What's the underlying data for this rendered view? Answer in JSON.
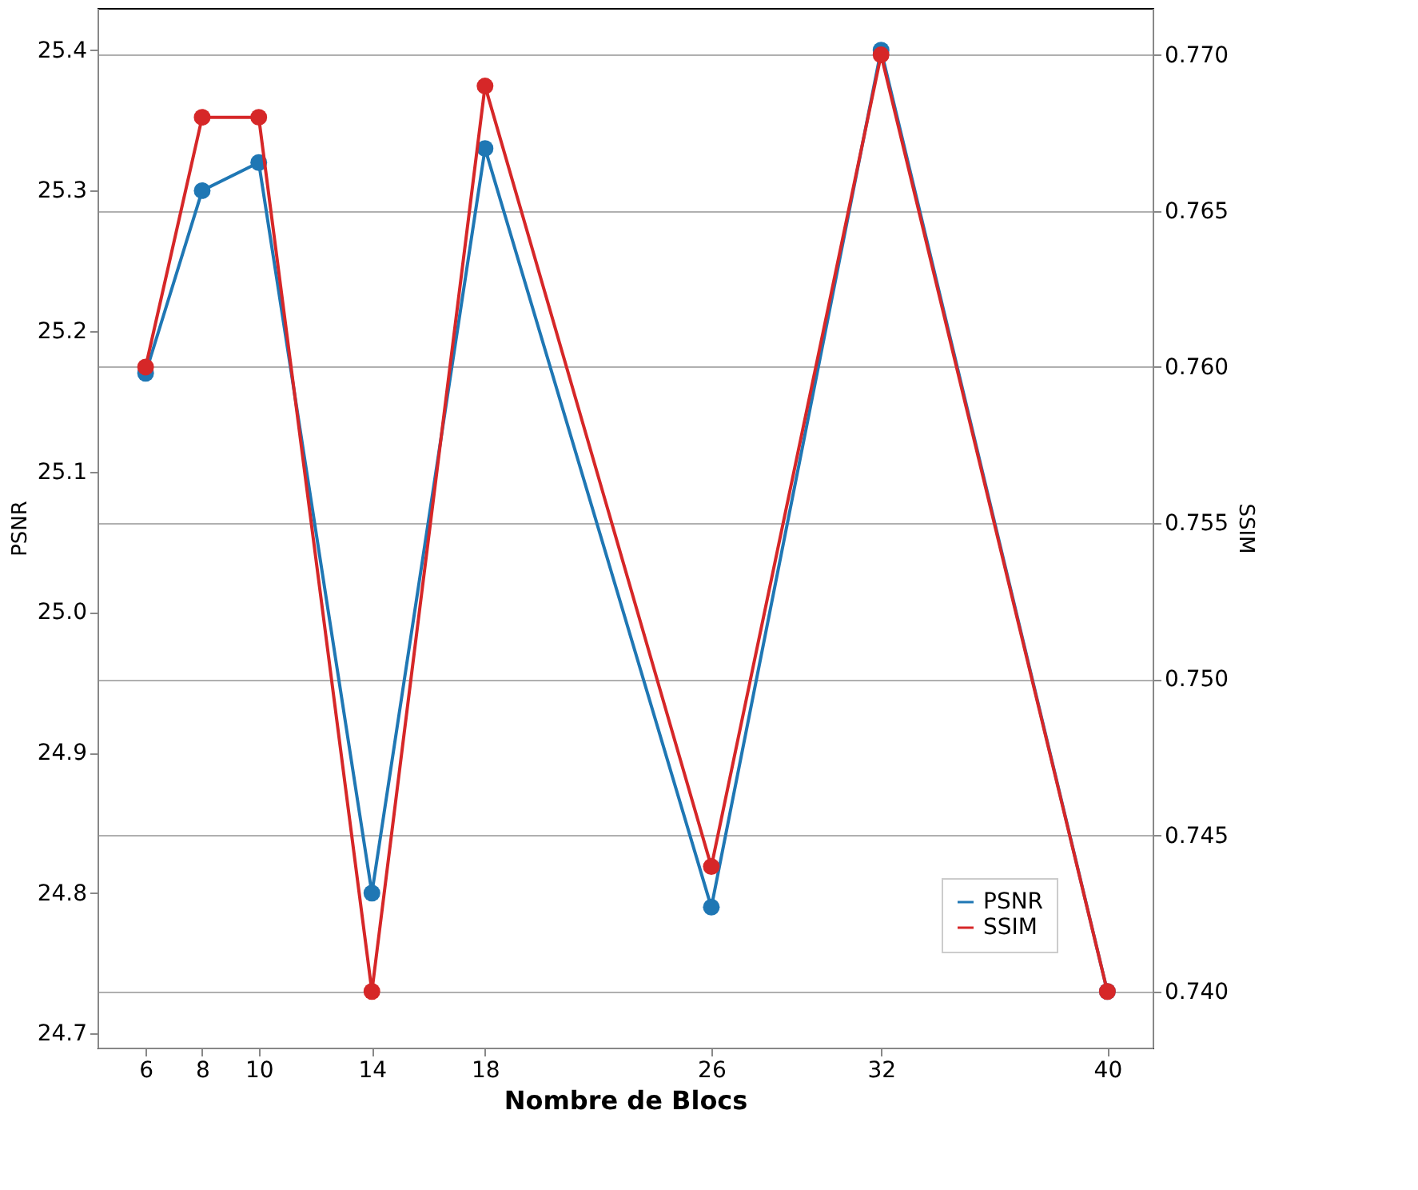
{
  "chart_data": {
    "type": "line",
    "xlabel": "Nombre de Blocs",
    "ylabel": "PSNR",
    "y2label": "SSIM",
    "x": [
      6,
      8,
      10,
      14,
      18,
      26,
      32,
      40
    ],
    "series": [
      {
        "name": "PSNR",
        "color": "#1f77b4",
        "values": [
          25.17,
          25.3,
          25.32,
          24.8,
          25.33,
          24.79,
          25.4,
          24.73
        ]
      },
      {
        "name": "SSIM",
        "color": "#d62728",
        "axis": "y2",
        "values": [
          0.76,
          0.768,
          0.768,
          0.74,
          0.769,
          0.744,
          0.77,
          0.74
        ]
      }
    ],
    "xlim": [
      4.3,
      41.6
    ],
    "xticks": [
      6,
      8,
      10,
      14,
      18,
      26,
      32,
      40
    ],
    "ylim": [
      24.69,
      25.43
    ],
    "yticks": [
      24.7,
      24.8,
      24.9,
      {
        "value": 25.0,
        "label": "25.0"
      },
      25.1,
      25.2,
      25.3,
      25.4
    ],
    "y2lim": [
      0.7382,
      0.7715
    ],
    "y2ticks": [
      {
        "value": 0.74,
        "label": "0.740"
      },
      {
        "value": 0.745,
        "label": "0.745"
      },
      {
        "value": 0.75,
        "label": "0.750"
      },
      {
        "value": 0.755,
        "label": "0.755"
      },
      {
        "value": 0.76,
        "label": "0.760"
      },
      {
        "value": 0.765,
        "label": "0.765"
      },
      {
        "value": 0.77,
        "label": "0.770"
      }
    ],
    "grid": "y2",
    "legend": "bottom right",
    "marker": "circle",
    "line_style": "solid"
  }
}
